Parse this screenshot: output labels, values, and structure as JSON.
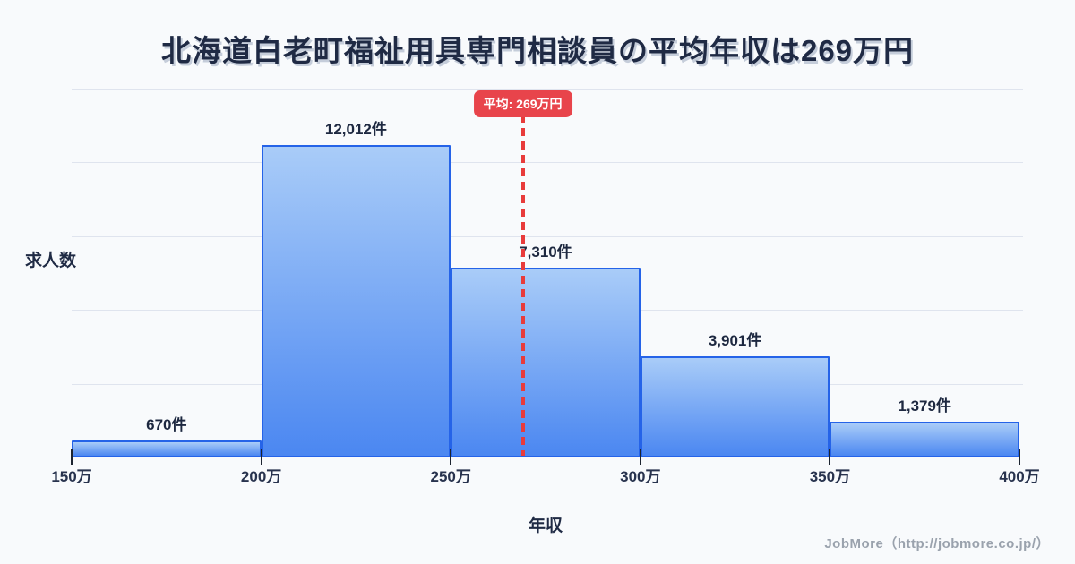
{
  "title": "北海道白老町福祉用具専門相談員の平均年収は269万円",
  "chart_data": {
    "type": "bar",
    "subtype": "histogram",
    "title": "北海道白老町福祉用具専門相談員の平均年収は269万円",
    "xlabel": "年収",
    "ylabel": "求人数",
    "bin_edges_man_yen": [
      150,
      200,
      250,
      300,
      350,
      400
    ],
    "x_tick_labels": [
      "150万",
      "200万",
      "250万",
      "300万",
      "350万",
      "400万"
    ],
    "values": [
      670,
      12012,
      7310,
      3901,
      1379
    ],
    "bar_labels": [
      "670件",
      "12,012件",
      "7,310件",
      "3,901件",
      "1,379件"
    ],
    "average": {
      "value_man_yen": 269,
      "label": "平均: 269万円"
    },
    "xlim_man_yen": [
      150,
      400
    ],
    "grid": "horizontal",
    "legend": "none",
    "colors": {
      "background": "#f8fafc",
      "bar_gradient_top": "#a9ccf8",
      "bar_gradient_bottom": "#4b87f1",
      "bar_border": "#2563e8",
      "average_line": "#e83b3b",
      "average_badge_bg": "#e8444b",
      "average_badge_text": "#ffffff",
      "title_text": "#1f2a44",
      "value_label_text": "#1d2840",
      "gridline": "#dfe4ee",
      "footer_text": "#9aa2ad"
    }
  },
  "footer": {
    "credit": "JobMore（http://jobmore.co.jp/）"
  }
}
